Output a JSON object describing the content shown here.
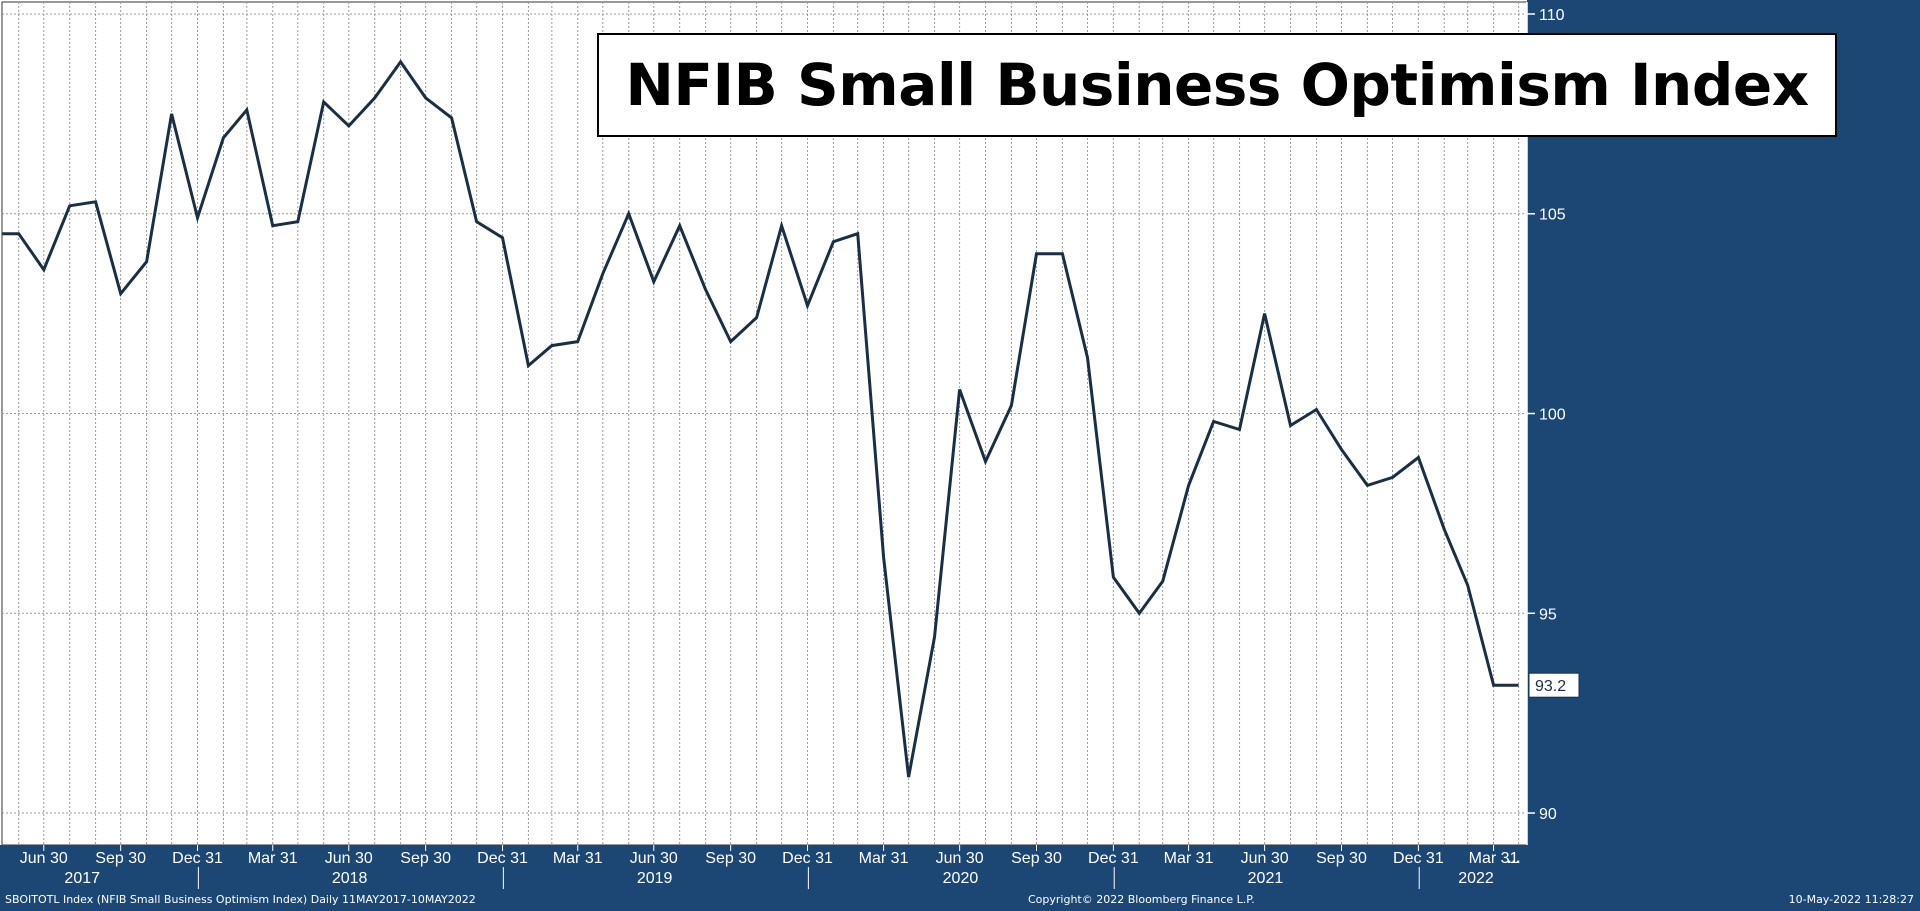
{
  "chart_data": {
    "type": "line",
    "title": "NFIB Small Business Optimism Index",
    "ylim": [
      89.2,
      110.3
    ],
    "y_ticks": [
      90,
      95,
      100,
      105,
      110
    ],
    "grid": true,
    "last_value_label": "93.2",
    "colors": {
      "line": "#1a2e44",
      "axis_bg": "#1c4674",
      "axis_text": "#ffffff",
      "grid": "#9a9a9a",
      "plot_bg": "#ffffff"
    },
    "x_start": "2017-05-11",
    "x_end": "2022-05-10",
    "x_tick_labels": [
      {
        "label": "Jun 30",
        "date": "2017-06-30"
      },
      {
        "label": "Sep 30",
        "date": "2017-09-30"
      },
      {
        "label": "Dec 31",
        "date": "2017-12-31"
      },
      {
        "label": "Mar 31",
        "date": "2018-03-31"
      },
      {
        "label": "Jun 30",
        "date": "2018-06-30"
      },
      {
        "label": "Sep 30",
        "date": "2018-09-30"
      },
      {
        "label": "Dec 31",
        "date": "2018-12-31"
      },
      {
        "label": "Mar 31",
        "date": "2019-03-31"
      },
      {
        "label": "Jun 30",
        "date": "2019-06-30"
      },
      {
        "label": "Sep 30",
        "date": "2019-09-30"
      },
      {
        "label": "Dec 31",
        "date": "2019-12-31"
      },
      {
        "label": "Mar 31",
        "date": "2020-03-31"
      },
      {
        "label": "Jun 30",
        "date": "2020-06-30"
      },
      {
        "label": "Sep 30",
        "date": "2020-09-30"
      },
      {
        "label": "Dec 31",
        "date": "2020-12-31"
      },
      {
        "label": "Mar 31",
        "date": "2021-03-31"
      },
      {
        "label": "Jun 30",
        "date": "2021-06-30"
      },
      {
        "label": "Sep 30",
        "date": "2021-09-30"
      },
      {
        "label": "Dec 31",
        "date": "2021-12-31"
      },
      {
        "label": "Mar 31",
        "date": "2022-03-31"
      }
    ],
    "overflow_label": "...",
    "year_labels": [
      {
        "label": "2017",
        "date": "2017-08-15"
      },
      {
        "label": "2018",
        "date": "2018-07-01"
      },
      {
        "label": "2019",
        "date": "2019-07-01"
      },
      {
        "label": "2020",
        "date": "2020-07-01"
      },
      {
        "label": "2021",
        "date": "2021-07-01"
      },
      {
        "label": "2022",
        "date": "2022-03-10"
      }
    ],
    "year_dividers": [
      "2018-01-01",
      "2019-01-01",
      "2020-01-01",
      "2021-01-01",
      "2022-01-01"
    ],
    "series": [
      {
        "points": [
          {
            "x": "2017-05-11",
            "y": 104.5
          },
          {
            "x": "2017-05-31",
            "y": 104.5
          },
          {
            "x": "2017-06-30",
            "y": 103.6
          },
          {
            "x": "2017-07-31",
            "y": 105.2
          },
          {
            "x": "2017-08-31",
            "y": 105.3
          },
          {
            "x": "2017-09-30",
            "y": 103.0
          },
          {
            "x": "2017-10-31",
            "y": 103.8
          },
          {
            "x": "2017-11-30",
            "y": 107.5
          },
          {
            "x": "2017-12-31",
            "y": 104.9
          },
          {
            "x": "2018-01-31",
            "y": 106.9
          },
          {
            "x": "2018-02-28",
            "y": 107.6
          },
          {
            "x": "2018-03-31",
            "y": 104.7
          },
          {
            "x": "2018-04-30",
            "y": 104.8
          },
          {
            "x": "2018-05-31",
            "y": 107.8
          },
          {
            "x": "2018-06-30",
            "y": 107.2
          },
          {
            "x": "2018-07-31",
            "y": 107.9
          },
          {
            "x": "2018-08-31",
            "y": 108.8
          },
          {
            "x": "2018-09-30",
            "y": 107.9
          },
          {
            "x": "2018-10-31",
            "y": 107.4
          },
          {
            "x": "2018-11-30",
            "y": 104.8
          },
          {
            "x": "2018-12-31",
            "y": 104.4
          },
          {
            "x": "2019-01-31",
            "y": 101.2
          },
          {
            "x": "2019-02-28",
            "y": 101.7
          },
          {
            "x": "2019-03-31",
            "y": 101.8
          },
          {
            "x": "2019-04-30",
            "y": 103.5
          },
          {
            "x": "2019-05-31",
            "y": 105.0
          },
          {
            "x": "2019-06-30",
            "y": 103.3
          },
          {
            "x": "2019-07-31",
            "y": 104.7
          },
          {
            "x": "2019-08-31",
            "y": 103.1
          },
          {
            "x": "2019-09-30",
            "y": 101.8
          },
          {
            "x": "2019-10-31",
            "y": 102.4
          },
          {
            "x": "2019-11-30",
            "y": 104.7
          },
          {
            "x": "2019-12-31",
            "y": 102.7
          },
          {
            "x": "2020-01-31",
            "y": 104.3
          },
          {
            "x": "2020-02-29",
            "y": 104.5
          },
          {
            "x": "2020-03-31",
            "y": 96.4
          },
          {
            "x": "2020-04-30",
            "y": 90.9
          },
          {
            "x": "2020-05-31",
            "y": 94.4
          },
          {
            "x": "2020-06-30",
            "y": 100.6
          },
          {
            "x": "2020-07-31",
            "y": 98.8
          },
          {
            "x": "2020-08-31",
            "y": 100.2
          },
          {
            "x": "2020-09-30",
            "y": 104.0
          },
          {
            "x": "2020-10-31",
            "y": 104.0
          },
          {
            "x": "2020-11-30",
            "y": 101.4
          },
          {
            "x": "2020-12-31",
            "y": 95.9
          },
          {
            "x": "2021-01-31",
            "y": 95.0
          },
          {
            "x": "2021-02-28",
            "y": 95.8
          },
          {
            "x": "2021-03-31",
            "y": 98.2
          },
          {
            "x": "2021-04-30",
            "y": 99.8
          },
          {
            "x": "2021-05-31",
            "y": 99.6
          },
          {
            "x": "2021-06-30",
            "y": 102.5
          },
          {
            "x": "2021-07-31",
            "y": 99.7
          },
          {
            "x": "2021-08-31",
            "y": 100.1
          },
          {
            "x": "2021-09-30",
            "y": 99.1
          },
          {
            "x": "2021-10-31",
            "y": 98.2
          },
          {
            "x": "2021-11-30",
            "y": 98.4
          },
          {
            "x": "2021-12-31",
            "y": 98.9
          },
          {
            "x": "2022-01-31",
            "y": 97.1
          },
          {
            "x": "2022-02-28",
            "y": 95.7
          },
          {
            "x": "2022-03-31",
            "y": 93.2
          },
          {
            "x": "2022-04-30",
            "y": 93.2
          }
        ]
      }
    ]
  },
  "footer": {
    "left": "SBOITOTL Index (NFIB Small Business Optimism Index)  Daily 11MAY2017-10MAY2022",
    "center": "Copyright© 2022 Bloomberg Finance L.P.",
    "right": "10-May-2022 11:28:27"
  }
}
